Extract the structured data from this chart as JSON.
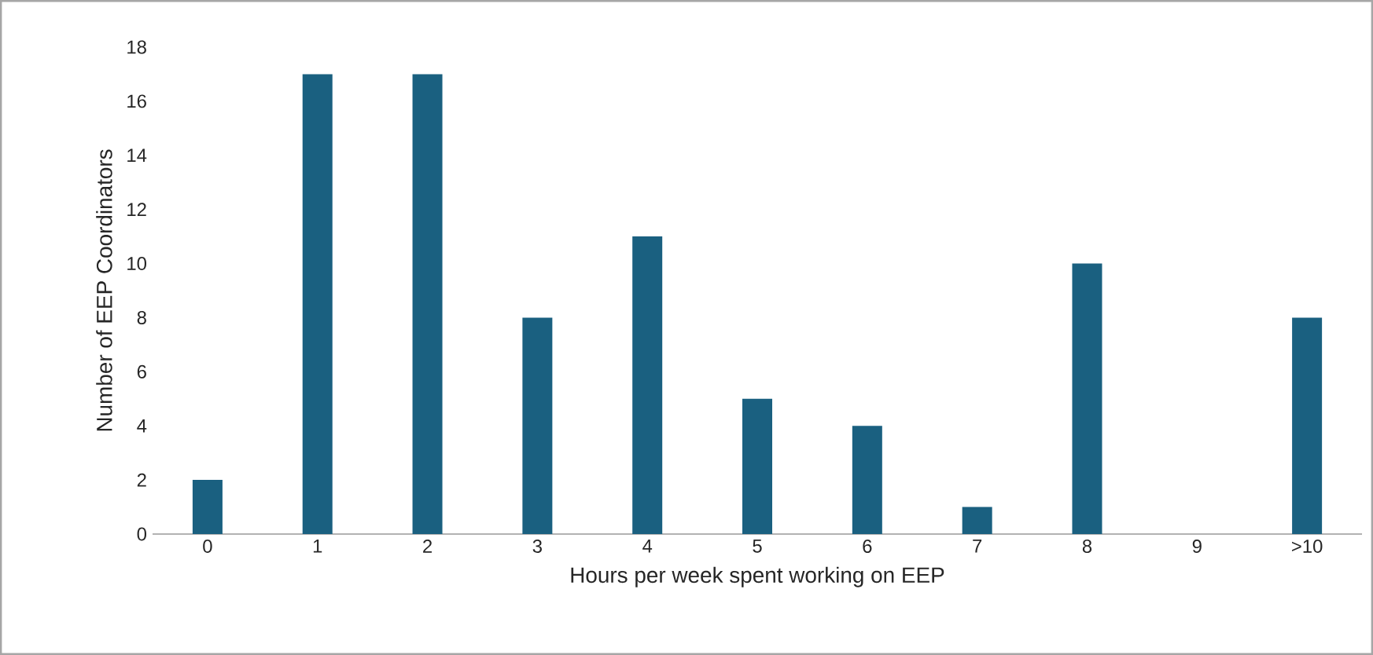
{
  "chart_data": {
    "type": "bar",
    "xlabel": "Hours per week spent working on EEP",
    "ylabel": "Number of EEP Coordinators",
    "categories": [
      "0",
      "1",
      "2",
      "3",
      "4",
      "5",
      "6",
      "7",
      "8",
      "9",
      ">10"
    ],
    "values": [
      2,
      17,
      17,
      8,
      11,
      5,
      4,
      1,
      10,
      0,
      8
    ],
    "color": "#1a6080",
    "ylim": [
      0,
      18
    ],
    "yticks": [
      0,
      2,
      4,
      6,
      8,
      10,
      12,
      14,
      16,
      18
    ],
    "grid": false
  }
}
